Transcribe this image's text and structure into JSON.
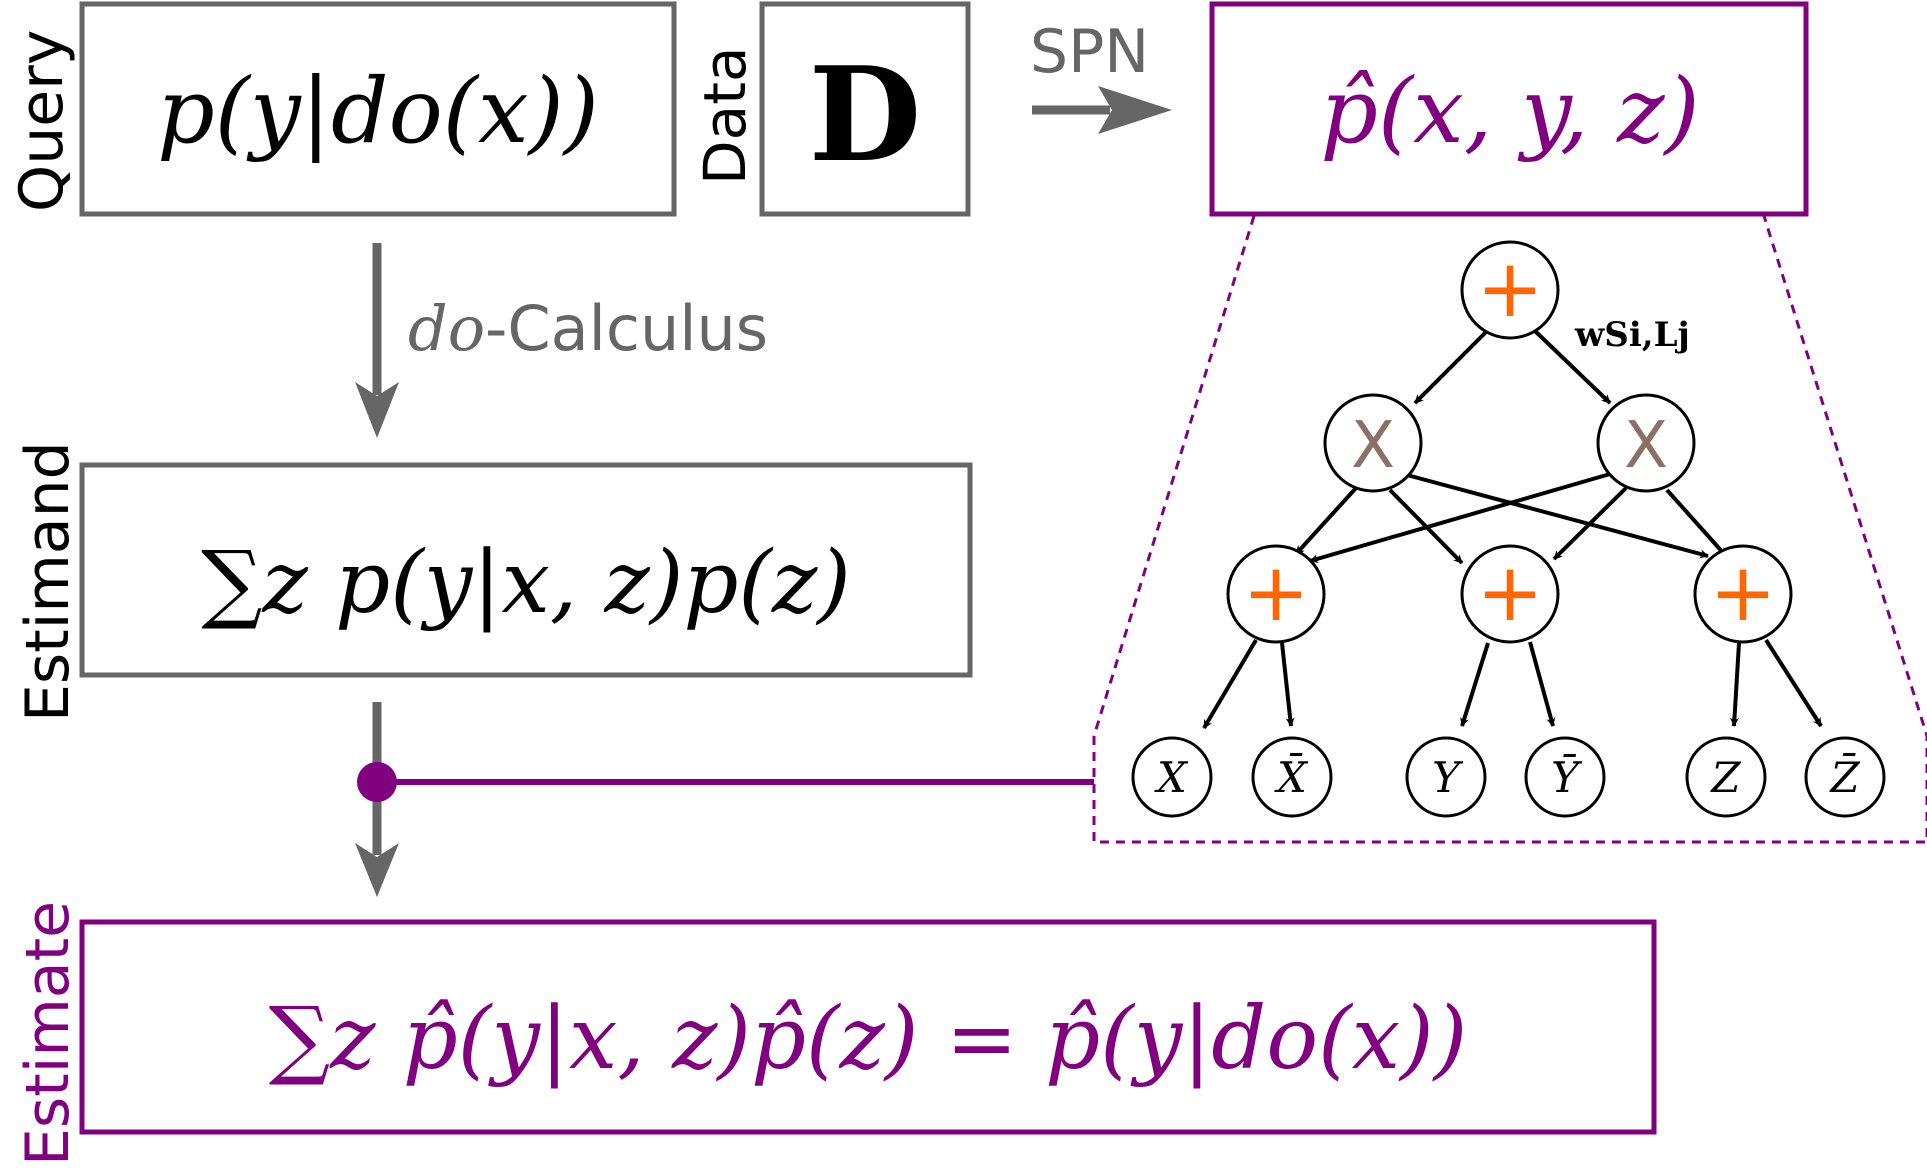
{
  "colors": {
    "gray": "#666666",
    "purple": "#800080",
    "orange": "#ff6600",
    "product": "#8a7066",
    "black": "#000000"
  },
  "labels": {
    "query": "Query",
    "data": "Data",
    "estimand": "Estimand",
    "estimate": "Estimate",
    "spn": "SPN",
    "do_part": "do",
    "calculus_part": "-Calculus"
  },
  "boxes": {
    "query": "p(y|do(x))",
    "data": "D",
    "spn_joint": "p̂(x, y, z)",
    "estimand": "∑z p(y|x, z)p(z)",
    "estimate": "∑z p̂(y|x, z)p̂(z) = p̂(y|do(x))"
  },
  "spn": {
    "weight_label": "wSi,Lj",
    "sum_symbol": "+",
    "product_symbol": "X",
    "leaves": [
      "X",
      "X̄",
      "Y",
      "Ȳ",
      "Z",
      "Z̄"
    ]
  }
}
